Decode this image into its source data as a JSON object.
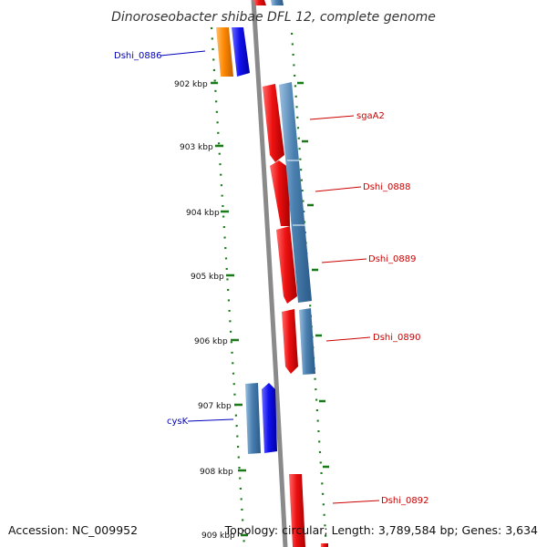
{
  "title": "Dinoroseobacter shibae DFL 12, complete genome",
  "footer": {
    "accession": "Accession: NC_009952",
    "topology": "Topology: circular; Length: 3,789,584 bp; Genes: 3,634"
  },
  "colors": {
    "backbone": "#888888",
    "tick": "#1a7a1a",
    "label_red": "#cc0000",
    "label_blue": "#0000bb",
    "gene_red": "#ee1111",
    "gene_steel": "#4a80b0",
    "gene_blue": "#1111ee",
    "gene_orange": "#ff8800"
  },
  "kbp_ticks": [
    {
      "kbp": 902,
      "label": "902 kbp"
    },
    {
      "kbp": 903,
      "label": "903 kbp"
    },
    {
      "kbp": 904,
      "label": "904 kbp"
    },
    {
      "kbp": 905,
      "label": "905 kbp"
    },
    {
      "kbp": 906,
      "label": "906 kbp"
    },
    {
      "kbp": 907,
      "label": "907 kbp"
    },
    {
      "kbp": 908,
      "label": "908 kbp"
    },
    {
      "kbp": 909,
      "label": "909 kbp"
    }
  ],
  "gene_labels": [
    {
      "name": "Dshi_0886",
      "color": "blue"
    },
    {
      "name": "sgaA2",
      "color": "red"
    },
    {
      "name": "Dshi_0888",
      "color": "red"
    },
    {
      "name": "Dshi_0889",
      "color": "red"
    },
    {
      "name": "Dshi_0890",
      "color": "red"
    },
    {
      "name": "cysK",
      "color": "blue"
    },
    {
      "name": "Dshi_0892",
      "color": "red"
    }
  ]
}
